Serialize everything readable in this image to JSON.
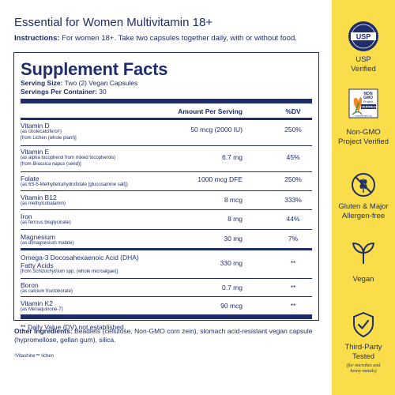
{
  "header": {
    "title": "Essential for Women Multivitamin 18+",
    "instructions_label": "Instructions:",
    "instructions_text": "For women 18+. Take two capsules together daily, with or without food."
  },
  "facts": {
    "title": "Supplement Facts",
    "serving_size_label": "Serving Size:",
    "serving_size": "Two (2) Vegan Capsules",
    "servings_label": "Servings Per Container:",
    "servings": "30",
    "col_amount": "Amount Per Serving",
    "col_dv": "%DV",
    "rows": [
      {
        "name": "Vitamin D",
        "sub1": "(as cholecalciferol¹)",
        "sub2": "[from Lichen (whole plant)]",
        "amount": "50 mcg (2000 IU)",
        "dv": "250%"
      },
      {
        "name": "Vitamin E",
        "sub1": "(as alpha tocopherol from mixed tocopherols)",
        "sub2_pre": "[from ",
        "sub2_it": "Brassica napus",
        "sub2_post": " (seed)]",
        "amount": "6.7 mg",
        "dv": "45%"
      },
      {
        "name": "Folate",
        "sub1": "(as 6S-5-Methyltetrahydrofolate [glucosamine salt])",
        "amount": "1000 mcg DFE",
        "dv": "250%"
      },
      {
        "name": "Vitamin B12",
        "sub1": "(as methylcobalamin)",
        "amount": "8 mcg",
        "dv": "333%"
      },
      {
        "name": "Iron",
        "sub1": "(as ferrous bisglycinate)",
        "amount": "8 mg",
        "dv": "44%"
      },
      {
        "name": "Magnesium",
        "sub1": "(as dimagnesium malate)",
        "amount": "30 mg",
        "dv": "7%"
      },
      {
        "name": "Omega-3 Docosahexaenoic Acid (DHA)",
        "name2": "Fatty Acids",
        "sub2_pre": "[from ",
        "sub2_it": "Schizochytrium",
        "sub2_post": " spp. (whole microalgae)]",
        "amount": "330 mg",
        "dv": "**"
      },
      {
        "name": "Boron",
        "sub1": "(as calcium fructoborate)",
        "amount": "0.7 mg",
        "dv": "**"
      },
      {
        "name": "Vitamin K2",
        "sub1": "(as Menaquinone-7)",
        "amount": "90 mcg",
        "dv": "**"
      }
    ],
    "footnote": "** Daily Value (DV) not established."
  },
  "other": {
    "label": "Other Ingredients:",
    "text": "Beadlets (cellulose, Non-GMO corn zein), stomach acid-resistant vegan capsule (hypromellose, gellan gum), silica.",
    "vitashine": "¹Vitashine™ lichen"
  },
  "badges": {
    "usp": {
      "logo_text": "USP",
      "line1": "USP",
      "line2": "Verified",
      "icon": "usp-seal-icon"
    },
    "nongmo": {
      "logo_l1": "NON",
      "logo_l2": "GMO",
      "logo_l3": "Project",
      "logo_l4": "VERIFIED",
      "logo_url": "nongmoproject.org",
      "line1": "Non-GMO",
      "line2": "Project Verified",
      "icon": "butterfly-icon"
    },
    "gluten": {
      "line1": "Gluten & Major",
      "line2": "Allergen-free",
      "icon": "wheat-crossed-icon"
    },
    "vegan": {
      "line1": "Vegan",
      "icon": "sprout-icon"
    },
    "tested": {
      "line1": "Third-Party",
      "line2": "Tested",
      "note1": "(for microbes and",
      "note2": "heavy metals)",
      "icon": "shield-check-icon"
    }
  },
  "colors": {
    "navy": "#1f2d6b",
    "yellow": "#f9dd4a",
    "usp_green": "#1d6b3c"
  }
}
